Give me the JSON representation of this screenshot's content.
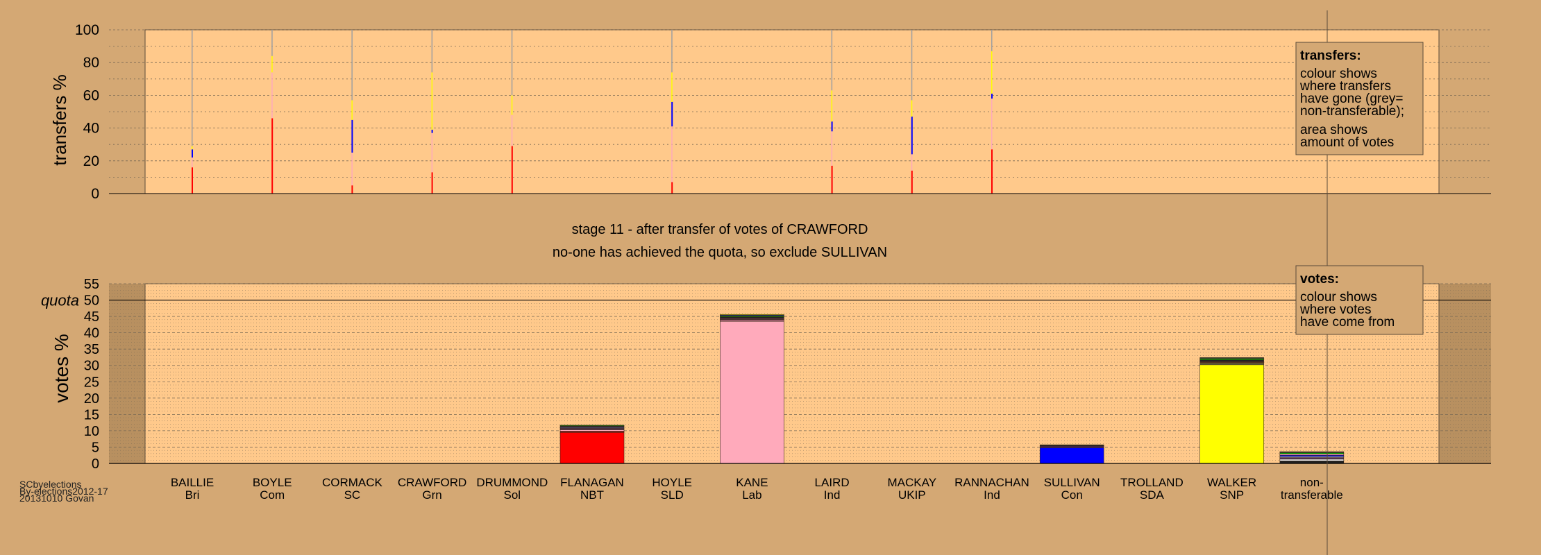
{
  "credits": {
    "line1": "SCbyelections",
    "line2": "By-elections2012-17",
    "line3": "20131010 Govan"
  },
  "stage_title": "stage 11 - after transfer of votes of CRAWFORD",
  "stage_subtitle": "no-one has achieved the quota, so exclude SULLIVAN",
  "colors": {
    "background": "#d4a874",
    "plot_bg": "#ffc98b",
    "shade": "#b89060",
    "grid": "#7a6a55"
  },
  "legend_transfers": {
    "title": "transfers:",
    "lines": [
      "colour shows",
      "where transfers",
      "have gone (grey=",
      "non-transferable);",
      "area shows",
      "amount of votes"
    ]
  },
  "legend_votes": {
    "title": "votes:",
    "lines": [
      "colour shows",
      "where votes",
      "have come from"
    ]
  },
  "chart_data": [
    {
      "type": "bar",
      "name": "transfers",
      "ylabel": "transfers %",
      "ylim": [
        0,
        100
      ],
      "yticks": [
        0,
        20,
        40,
        60,
        80,
        100
      ],
      "grid": true,
      "legend": "top-right",
      "columns": [
        {
          "stack": [
            [
              "#ff0000",
              16
            ],
            [
              "#ffaabb",
              6
            ],
            [
              "#0000ff",
              5
            ],
            [
              "#ffff00",
              2
            ],
            [
              "#a0a0a0",
              71
            ]
          ]
        },
        {
          "stack": [
            [
              "#ff0000",
              46
            ],
            [
              "#ffaabb",
              28
            ],
            [
              "#ffff00",
              10
            ],
            [
              "#a0a0a0",
              16
            ]
          ]
        },
        {
          "stack": [
            [
              "#ff0000",
              5
            ],
            [
              "#ffaabb",
              20
            ],
            [
              "#0000ff",
              20
            ],
            [
              "#ffff00",
              12
            ],
            [
              "#a0a0a0",
              43
            ]
          ]
        },
        {
          "stack": [
            [
              "#ff0000",
              13
            ],
            [
              "#ffaabb",
              24
            ],
            [
              "#0000ff",
              2
            ],
            [
              "#ffff00",
              35
            ],
            [
              "#a0a0a0",
              26
            ]
          ]
        },
        {
          "stack": [
            [
              "#ff0000",
              29
            ],
            [
              "#ffaabb",
              19
            ],
            [
              "#ffff00",
              12
            ],
            [
              "#a0a0a0",
              40
            ]
          ]
        },
        {
          "stack": []
        },
        {
          "stack": [
            [
              "#ff0000",
              7
            ],
            [
              "#ffaabb",
              34
            ],
            [
              "#0000ff",
              15
            ],
            [
              "#ffff00",
              18
            ],
            [
              "#a0a0a0",
              26
            ]
          ]
        },
        {
          "stack": []
        },
        {
          "stack": [
            [
              "#ff0000",
              17
            ],
            [
              "#ffaabb",
              21
            ],
            [
              "#0000ff",
              6
            ],
            [
              "#ffff00",
              19
            ],
            [
              "#a0a0a0",
              37
            ]
          ]
        },
        {
          "stack": [
            [
              "#ff0000",
              14
            ],
            [
              "#ffaabb",
              10
            ],
            [
              "#0000ff",
              23
            ],
            [
              "#ffff00",
              10
            ],
            [
              "#a0a0a0",
              43
            ]
          ]
        },
        {
          "stack": [
            [
              "#ff0000",
              27
            ],
            [
              "#ffaabb",
              31
            ],
            [
              "#0000ff",
              3
            ],
            [
              "#ffff00",
              26
            ],
            [
              "#a0a0a0",
              13
            ]
          ]
        },
        {
          "stack": []
        },
        {
          "stack": []
        },
        {
          "stack": []
        },
        {
          "stack": []
        }
      ]
    },
    {
      "type": "bar",
      "name": "votes",
      "ylabel": "votes %",
      "ylim": [
        0,
        55
      ],
      "yticks": [
        0,
        5,
        10,
        15,
        20,
        25,
        30,
        35,
        40,
        45,
        50,
        55
      ],
      "grid": true,
      "legend": "top-right",
      "quota": {
        "label": "quota",
        "value": 50
      },
      "categories": [
        {
          "name": "BAILLIE",
          "party": "Bri"
        },
        {
          "name": "BOYLE",
          "party": "Com"
        },
        {
          "name": "CORMACK",
          "party": "SC"
        },
        {
          "name": "CRAWFORD",
          "party": "Grn"
        },
        {
          "name": "DRUMMOND",
          "party": "Sol"
        },
        {
          "name": "FLANAGAN",
          "party": "NBT"
        },
        {
          "name": "HOYLE",
          "party": "SLD"
        },
        {
          "name": "KANE",
          "party": "Lab"
        },
        {
          "name": "LAIRD",
          "party": "Ind"
        },
        {
          "name": "MACKAY",
          "party": "UKIP"
        },
        {
          "name": "RANNACHAN",
          "party": "Ind"
        },
        {
          "name": "SULLIVAN",
          "party": "Con"
        },
        {
          "name": "TROLLAND",
          "party": "SDA"
        },
        {
          "name": "WALKER",
          "party": "SNP"
        },
        {
          "name": "non-",
          "party": "transferable"
        }
      ],
      "columns": [
        {
          "stack": []
        },
        {
          "stack": []
        },
        {
          "stack": []
        },
        {
          "stack": []
        },
        {
          "stack": []
        },
        {
          "stack": [
            [
              "#ff0000",
              9.5
            ],
            [
              "#882222",
              0.4
            ],
            [
              "#ffaabb",
              0.4
            ],
            [
              "#553355",
              0.5
            ],
            [
              "#444466",
              0.4
            ],
            [
              "#2a2a2a",
              0.3
            ],
            [
              "#00aa00",
              0.2
            ]
          ]
        },
        {
          "stack": []
        },
        {
          "stack": [
            [
              "#ffaabb",
              43.5
            ],
            [
              "#aa6677",
              0.5
            ],
            [
              "#553344",
              0.5
            ],
            [
              "#222222",
              0.4
            ],
            [
              "#00aa00",
              0.3
            ],
            [
              "#0000ff",
              0.2
            ],
            [
              "#ffff00",
              0.2
            ]
          ]
        },
        {
          "stack": []
        },
        {
          "stack": []
        },
        {
          "stack": []
        },
        {
          "stack": [
            [
              "#0000ff",
              4.8
            ],
            [
              "#442255",
              0.5
            ],
            [
              "#222222",
              0.4
            ]
          ]
        },
        {
          "stack": []
        },
        {
          "stack": [
            [
              "#ffff00",
              30.2
            ],
            [
              "#777744",
              0.5
            ],
            [
              "#553322",
              0.5
            ],
            [
              "#222222",
              0.5
            ],
            [
              "#00aa00",
              0.4
            ],
            [
              "#444444",
              0.3
            ]
          ]
        },
        {
          "stack": [
            [
              "#222222",
              0.8
            ],
            [
              "#ffffff",
              0.5
            ],
            [
              "#553355",
              0.5
            ],
            [
              "#ffffff",
              0.3
            ],
            [
              "#0000ff",
              0.4
            ],
            [
              "#ffaabb",
              0.4
            ],
            [
              "#00aa00",
              0.4
            ],
            [
              "#444444",
              0.3
            ]
          ]
        }
      ]
    }
  ]
}
